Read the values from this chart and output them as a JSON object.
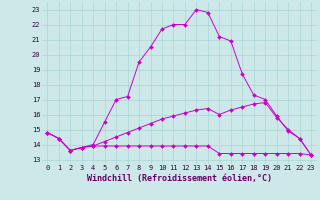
{
  "xlabel": "Windchill (Refroidissement éolien,°C)",
  "background_color": "#cce8e8",
  "grid_color": "#aad4d4",
  "line_color": "#cc00cc",
  "x_ticks": [
    0,
    1,
    2,
    3,
    4,
    5,
    6,
    7,
    8,
    9,
    10,
    11,
    12,
    13,
    14,
    15,
    16,
    17,
    18,
    19,
    20,
    21,
    22,
    23
  ],
  "y_ticks": [
    13,
    14,
    15,
    16,
    17,
    18,
    19,
    20,
    21,
    22,
    23
  ],
  "ylim": [
    12.7,
    23.5
  ],
  "xlim": [
    -0.5,
    23.5
  ],
  "series1": [
    14.8,
    14.4,
    13.6,
    13.8,
    14.0,
    15.5,
    17.0,
    17.2,
    19.5,
    20.5,
    21.7,
    22.0,
    22.0,
    23.0,
    22.8,
    21.2,
    20.9,
    18.7,
    17.3,
    17.0,
    15.9,
    14.9,
    14.4,
    13.3
  ],
  "series2": [
    14.8,
    14.4,
    13.6,
    13.8,
    13.9,
    13.9,
    13.9,
    13.9,
    13.9,
    13.9,
    13.9,
    13.9,
    13.9,
    13.9,
    13.9,
    13.4,
    13.4,
    13.4,
    13.4,
    13.4,
    13.4,
    13.4,
    13.4,
    13.3
  ],
  "series3": [
    14.8,
    14.4,
    13.6,
    13.8,
    13.9,
    14.2,
    14.5,
    14.8,
    15.1,
    15.4,
    15.7,
    15.9,
    16.1,
    16.3,
    16.4,
    16.0,
    16.3,
    16.5,
    16.7,
    16.8,
    15.8,
    15.0,
    14.4,
    13.3
  ],
  "marker": "D",
  "markersize": 2.0,
  "linewidth": 0.7,
  "tick_fontsize": 5.0,
  "xlabel_fontsize": 6.0
}
